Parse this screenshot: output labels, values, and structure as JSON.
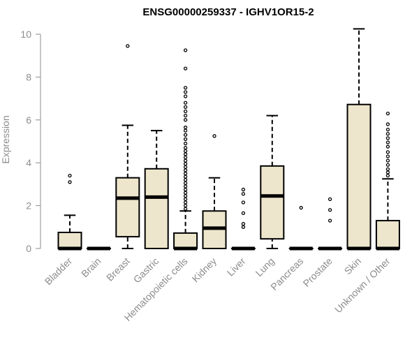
{
  "chart_data": {
    "type": "boxplot",
    "title": "ENSG00000259337 - IGHV1OR15-2",
    "xlabel": "",
    "ylabel": "Expression",
    "ylim": [
      0,
      10
    ],
    "yticks": [
      0,
      2,
      4,
      6,
      8,
      10
    ],
    "box_fill": "#ede6cc",
    "categories": [
      "Bladder",
      "Brain",
      "Breast",
      "Gastric",
      "Hematopoietic cells",
      "Kidney",
      "Liver",
      "Lung",
      "Pancreas",
      "Prostate",
      "Skin",
      "Unknown / Other"
    ],
    "series": [
      {
        "name": "Bladder",
        "whisker_low": 0,
        "q1": 0,
        "median": 0,
        "q3": 0.75,
        "whisker_high": 1.55,
        "outliers": [
          3.1,
          3.4
        ]
      },
      {
        "name": "Brain",
        "whisker_low": 0,
        "q1": 0,
        "median": 0,
        "q3": 0,
        "whisker_high": 0,
        "outliers": []
      },
      {
        "name": "Breast",
        "whisker_low": 0,
        "q1": 0.55,
        "median": 2.35,
        "q3": 3.3,
        "whisker_high": 5.75,
        "outliers": [
          9.45
        ]
      },
      {
        "name": "Gastric",
        "whisker_low": 0,
        "q1": 0,
        "median": 2.4,
        "q3": 3.72,
        "whisker_high": 5.5,
        "outliers": []
      },
      {
        "name": "Hematopoietic cells",
        "whisker_low": 0,
        "q1": 0,
        "median": 0,
        "q3": 0.72,
        "whisker_high": 1.75,
        "outliers": [
          1.85,
          2.0,
          2.15,
          2.3,
          2.45,
          2.6,
          2.75,
          2.9,
          3.05,
          3.2,
          3.35,
          3.5,
          3.65,
          3.8,
          3.95,
          4.1,
          4.25,
          4.4,
          4.55,
          4.7,
          4.9,
          5.1,
          5.3,
          5.5,
          5.65,
          6.0,
          6.2,
          6.4,
          6.6,
          6.8,
          7.1,
          7.3,
          7.5,
          8.4,
          9.25
        ]
      },
      {
        "name": "Kidney",
        "whisker_low": 0,
        "q1": 0,
        "median": 0.95,
        "q3": 1.75,
        "whisker_high": 3.3,
        "outliers": [
          5.25
        ]
      },
      {
        "name": "Liver",
        "whisker_low": 0,
        "q1": 0,
        "median": 0,
        "q3": 0,
        "whisker_high": 0,
        "outliers": [
          1.0,
          1.15,
          1.65,
          2.15,
          2.55,
          2.75
        ]
      },
      {
        "name": "Lung",
        "whisker_low": 0,
        "q1": 0.45,
        "median": 2.45,
        "q3": 3.85,
        "whisker_high": 6.2,
        "outliers": []
      },
      {
        "name": "Pancreas",
        "whisker_low": 0,
        "q1": 0,
        "median": 0,
        "q3": 0,
        "whisker_high": 0,
        "outliers": [
          1.9
        ]
      },
      {
        "name": "Prostate",
        "whisker_low": 0,
        "q1": 0,
        "median": 0,
        "q3": 0,
        "whisker_high": 0,
        "outliers": [
          1.3,
          1.8,
          2.3
        ]
      },
      {
        "name": "Skin",
        "whisker_low": 0,
        "q1": 0,
        "median": 0,
        "q3": 6.72,
        "whisker_high": 10.25,
        "outliers": []
      },
      {
        "name": "Unknown / Other",
        "whisker_low": 0,
        "q1": 0,
        "median": 0,
        "q3": 1.3,
        "whisker_high": 3.25,
        "outliers": [
          3.4,
          3.55,
          3.7,
          3.9,
          4.1,
          4.3,
          4.5,
          4.75,
          4.95,
          5.15,
          5.35,
          5.55,
          5.8,
          6.3
        ]
      }
    ]
  }
}
